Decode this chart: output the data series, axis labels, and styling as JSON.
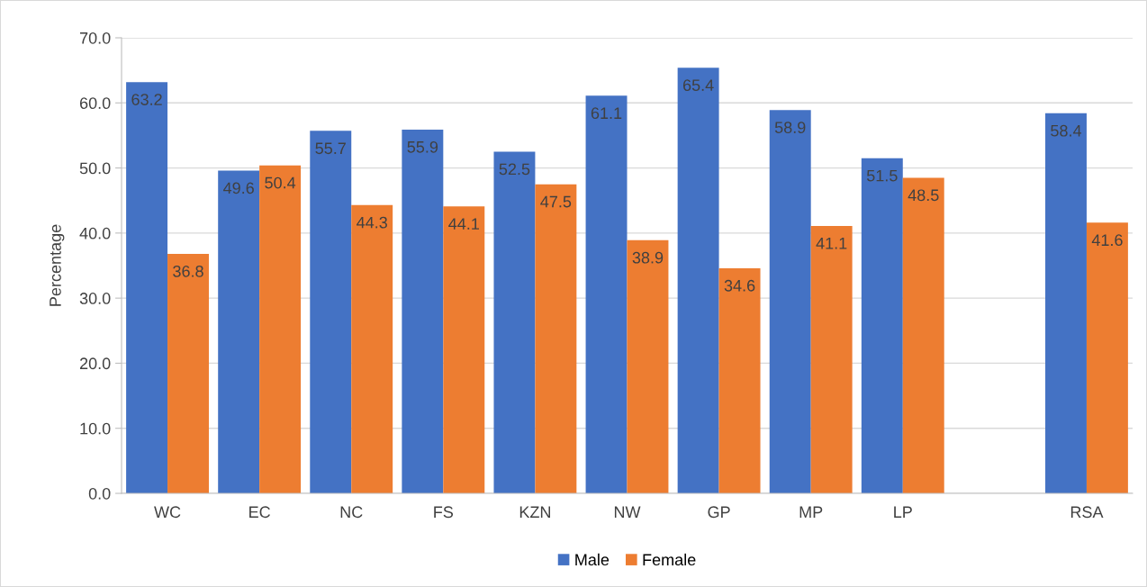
{
  "chart_data": {
    "type": "bar",
    "ylabel": "Percentage",
    "categories": [
      "WC",
      "EC",
      "NC",
      "FS",
      "KZN",
      "NW",
      "GP",
      "MP",
      "LP",
      null,
      "RSA"
    ],
    "series": [
      {
        "name": "Male",
        "color": "#4472c4",
        "values": [
          63.2,
          49.6,
          55.7,
          55.9,
          52.5,
          61.1,
          65.4,
          58.9,
          51.5,
          null,
          58.4
        ]
      },
      {
        "name": "Female",
        "color": "#ed7d31",
        "values": [
          36.8,
          50.4,
          44.3,
          44.1,
          47.5,
          38.9,
          34.6,
          41.1,
          48.5,
          null,
          41.6
        ]
      }
    ],
    "ylim": [
      0,
      70
    ],
    "yticks": [
      {
        "value": 0,
        "label": "0.0"
      },
      {
        "value": 10,
        "label": "10.0"
      },
      {
        "value": 20,
        "label": "20.0"
      },
      {
        "value": 30,
        "label": "30.0"
      },
      {
        "value": 40,
        "label": "40.0"
      },
      {
        "value": 50,
        "label": "50.0"
      },
      {
        "value": 60,
        "label": "60.0"
      },
      {
        "value": 70,
        "label": "70.0"
      }
    ],
    "grid": "y",
    "legend": "bottom",
    "data_labels": true
  }
}
